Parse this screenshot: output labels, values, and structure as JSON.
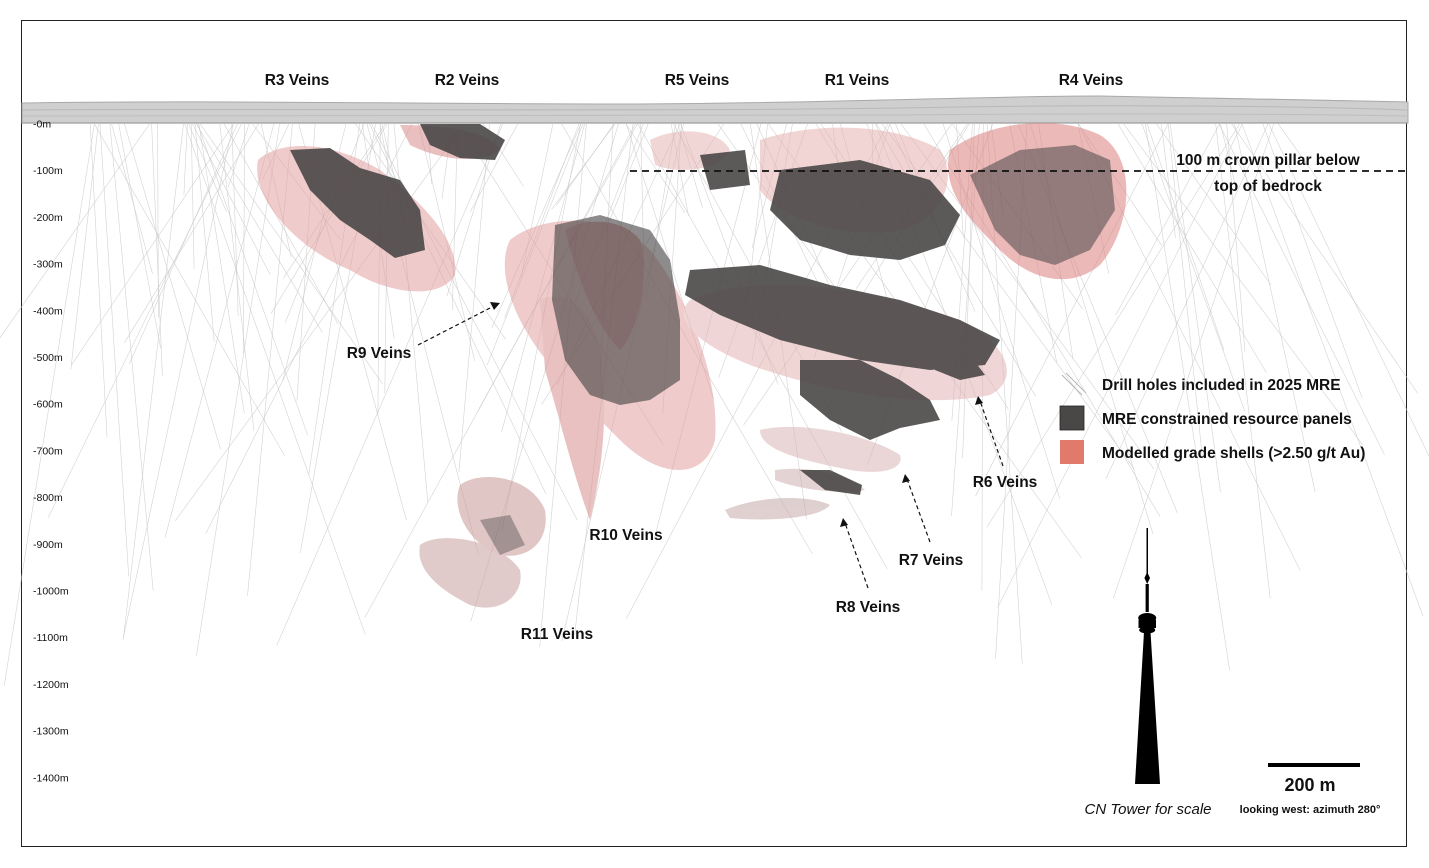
{
  "colors": {
    "panel": "#4a4747",
    "shell": "#e07a6a",
    "shell_light": "#e8b4b4",
    "drill": "#c8c8c8",
    "surface": "#bdbdbd"
  },
  "vein_labels": {
    "r3": "R3 Veins",
    "r2": "R2 Veins",
    "r5": "R5 Veins",
    "r1": "R1 Veins",
    "r4": "R4 Veins",
    "r9": "R9 Veins",
    "r10": "R10 Veins",
    "r11": "R11 Veins",
    "r8": "R8 Veins",
    "r7": "R7 Veins",
    "r6": "R6 Veins"
  },
  "depth_ticks": [
    "-0m",
    "-100m",
    "-200m",
    "-300m",
    "-400m",
    "-500m",
    "-600m",
    "-700m",
    "-800m",
    "-900m",
    "-1000m",
    "-1100m",
    "-1200m",
    "-1300m",
    "-1400m"
  ],
  "crown_pillar": {
    "line1": "100 m crown pillar below",
    "line2": "top of bedrock"
  },
  "legend": [
    {
      "label": "Drill holes included in 2025 MRE",
      "icon": "drill-hole-lines"
    },
    {
      "label": "MRE constrained resource panels",
      "icon": "dark-square",
      "color": "#4a4747"
    },
    {
      "label": "Modelled grade shells (>2.50 g/t Au)",
      "icon": "red-square",
      "color": "#e07a6a"
    }
  ],
  "scale_bar": {
    "label": "200 m"
  },
  "cn_tower_caption": "CN Tower for scale",
  "view_direction": "looking west: azimuth 280°"
}
